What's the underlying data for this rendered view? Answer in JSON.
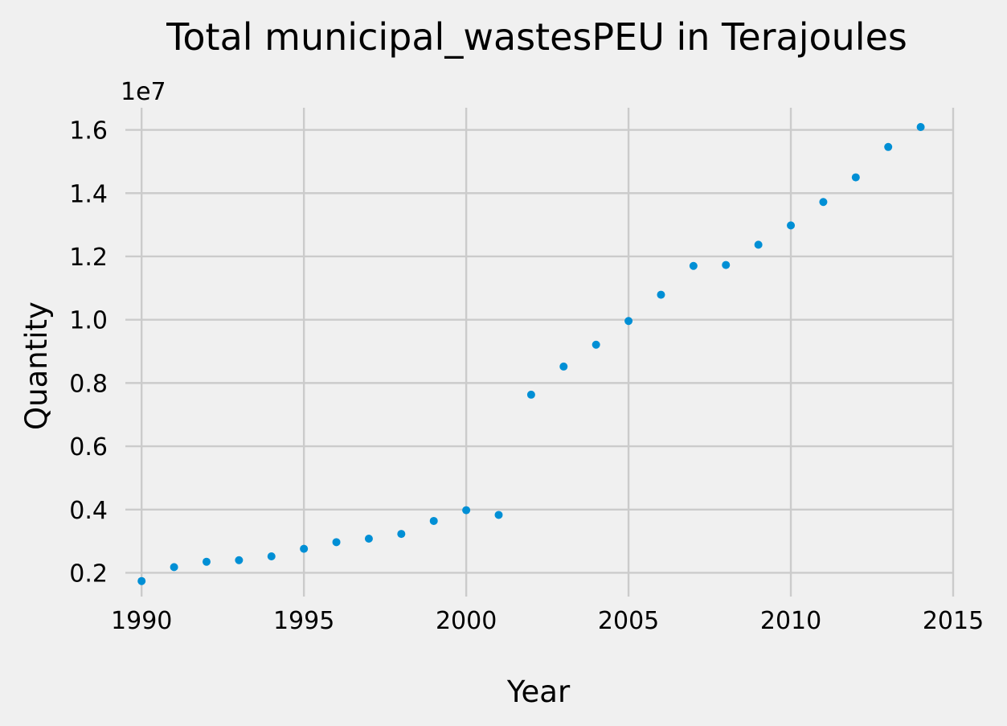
{
  "colors": {
    "background": "#f0f0f0",
    "grid": "#cbcbcb",
    "point": "#008fd5",
    "text": "#000000"
  },
  "chart_data": {
    "type": "scatter",
    "title": "Total municipal_wastesPEU in Terajoules",
    "xlabel": "Year",
    "ylabel": "Quantity",
    "y_offset_label": "1e7",
    "y_scale_factor": 10000000,
    "xlim": [
      1989.5,
      2015
    ],
    "ylim": [
      1250000,
      16700000
    ],
    "x_ticks": [
      1990,
      1995,
      2000,
      2005,
      2010,
      2015
    ],
    "y_ticks": [
      2000000,
      4000000,
      6000000,
      8000000,
      10000000,
      12000000,
      14000000,
      16000000
    ],
    "y_tick_labels": [
      "0.2",
      "0.4",
      "0.6",
      "0.8",
      "1.0",
      "1.2",
      "1.4",
      "1.6"
    ],
    "grid": true,
    "series": [
      {
        "x": [
          1990,
          1991,
          1992,
          1993,
          1994,
          1995,
          1996,
          1997,
          1998,
          1999,
          2000,
          2001,
          2002,
          2003,
          2004,
          2005,
          2006,
          2007,
          2008,
          2009,
          2010,
          2011,
          2012,
          2013,
          2014
        ],
        "y": [
          1740000,
          2180000,
          2350000,
          2400000,
          2520000,
          2760000,
          2970000,
          3080000,
          3230000,
          3640000,
          3980000,
          3830000,
          7630000,
          8520000,
          9210000,
          9960000,
          10790000,
          11700000,
          11730000,
          12370000,
          12980000,
          13720000,
          14500000,
          15460000,
          16090000
        ]
      }
    ]
  }
}
